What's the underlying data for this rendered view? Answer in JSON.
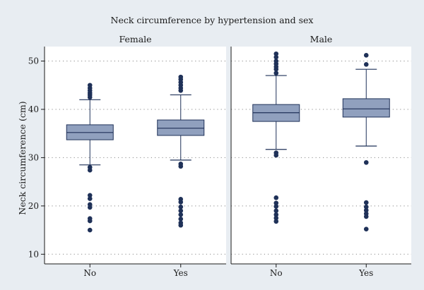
{
  "chart_data": {
    "type": "boxplot",
    "title": "Neck circumference by hypertension and sex",
    "ylabel": "Neck circumference (cm)",
    "ylim": [
      8,
      53
    ],
    "yticks": [
      10,
      20,
      30,
      40,
      50
    ],
    "grid": true,
    "categories": [
      "No",
      "Yes"
    ],
    "panels": [
      {
        "name": "Female",
        "boxes": [
          {
            "category": "No",
            "whisker_low": 28.5,
            "q1": 33.7,
            "median": 35.2,
            "q3": 36.8,
            "whisker_high": 42.0,
            "outliers_low": [
              28.0,
              27.4,
              22.2,
              21.5,
              20.3,
              19.7,
              17.4,
              16.9,
              15.0
            ],
            "outliers_high": [
              42.5,
              43.0,
              43.4,
              43.9,
              44.4,
              45.0
            ]
          },
          {
            "category": "Yes",
            "whisker_low": 29.5,
            "q1": 34.6,
            "median": 36.1,
            "q3": 37.8,
            "whisker_high": 43.0,
            "outliers_low": [
              28.7,
              28.2,
              21.4,
              20.8,
              19.8,
              19.0,
              18.2,
              17.3,
              16.5,
              16.0
            ],
            "outliers_high": [
              43.9,
              44.4,
              45.0,
              45.6,
              46.2,
              46.7
            ]
          }
        ]
      },
      {
        "name": "Male",
        "boxes": [
          {
            "category": "No",
            "whisker_low": 31.7,
            "q1": 37.5,
            "median": 39.3,
            "q3": 41.0,
            "whisker_high": 47.0,
            "outliers_low": [
              31.0,
              30.5,
              21.7,
              20.6,
              19.9,
              19.0,
              18.2,
              17.5,
              16.8
            ],
            "outliers_high": [
              47.5,
              48.3,
              48.8,
              49.4,
              50.0,
              50.8,
              51.5
            ]
          },
          {
            "category": "Yes",
            "whisker_low": 32.4,
            "q1": 38.4,
            "median": 40.1,
            "q3": 42.2,
            "whisker_high": 48.3,
            "outliers_low": [
              29.0,
              20.7,
              19.8,
              19.1,
              18.4,
              17.8,
              15.2
            ],
            "outliers_high": [
              49.3,
              51.2
            ]
          }
        ]
      }
    ]
  },
  "colors": {
    "background": "#e8edf2",
    "strip": "#e8edf2",
    "plot_bg": "#ffffff",
    "box_fill": "#90a0be",
    "box_stroke": "#1f3158",
    "outlier": "#1f3158",
    "grid": "#8a8a8a",
    "axis": "#1a1a1a"
  }
}
